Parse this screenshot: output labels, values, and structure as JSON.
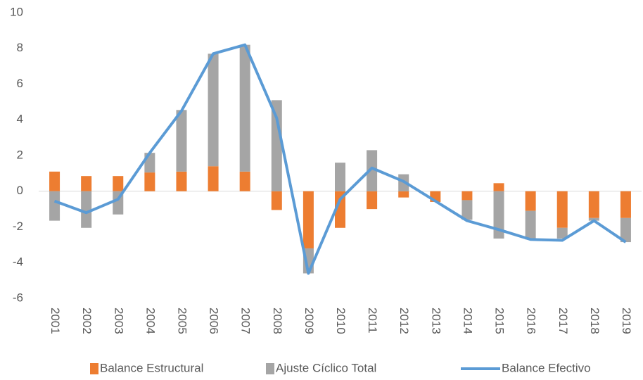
{
  "chart_data": {
    "type": "bar_line",
    "categories": [
      "2001",
      "2002",
      "2003",
      "2004",
      "2005",
      "2006",
      "2007",
      "2008",
      "2009",
      "2010",
      "2011",
      "2012",
      "2013",
      "2014",
      "2015",
      "2016",
      "2017",
      "2018",
      "2019"
    ],
    "series": [
      {
        "name": "Balance Estructural",
        "color": "#ed7d31",
        "type": "bar",
        "values": [
          1.1,
          0.85,
          0.85,
          1.05,
          1.1,
          1.4,
          1.1,
          -1.05,
          -3.2,
          -2.05,
          -1.0,
          -0.35,
          -0.6,
          -0.5,
          0.45,
          -1.1,
          -2.05,
          -1.5,
          -1.5
        ]
      },
      {
        "name": "Ajuste Cíclico Total",
        "color": "#a5a5a5",
        "type": "bar",
        "values": [
          -1.65,
          -2.05,
          -1.3,
          1.1,
          3.45,
          6.3,
          7.1,
          5.1,
          -1.4,
          1.6,
          2.3,
          0.95,
          0,
          -1.1,
          -2.65,
          -1.6,
          -0.6,
          -0.15,
          -1.35
        ]
      },
      {
        "name": "Balance Efectivo",
        "color": "#5b9bd5",
        "type": "line",
        "values": [
          -0.55,
          -1.2,
          -0.45,
          2.15,
          4.5,
          7.7,
          8.2,
          4.1,
          -4.6,
          -0.45,
          1.3,
          0.55,
          -0.55,
          -1.65,
          -2.15,
          -2.7,
          -2.75,
          -1.65,
          -2.85
        ]
      }
    ],
    "ylim": [
      -6,
      10
    ],
    "yticks": [
      -6,
      -4,
      -2,
      0,
      2,
      4,
      6,
      8,
      10
    ],
    "legend": "bottom"
  }
}
